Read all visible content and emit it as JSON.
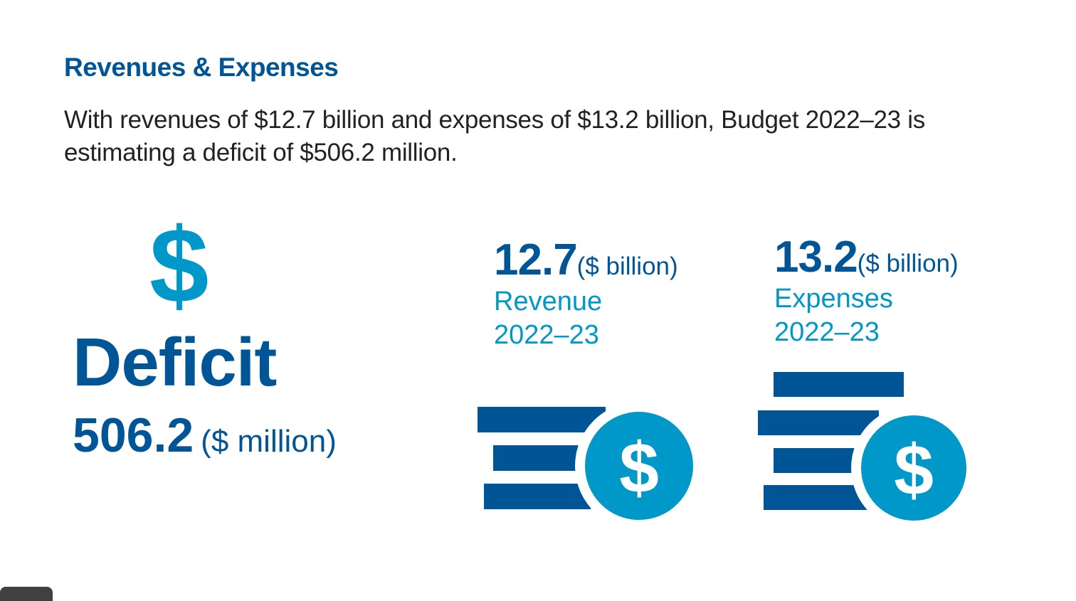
{
  "heading": "Revenues & Expenses",
  "intro": "With revenues of $12.7 billion and expenses of $13.2 billion, Budget 2022–23 is estimating a deficit of $506.2 million.",
  "deficit": {
    "symbol": "$",
    "label": "Deficit",
    "value": "506.2",
    "unit": "($ million)"
  },
  "revenue": {
    "value": "12.7",
    "unit": "($ billion)",
    "label": "Revenue",
    "year": "2022–23"
  },
  "expenses": {
    "value": "13.2",
    "unit": "($ billion)",
    "label": "Expenses",
    "year": "2022–23"
  },
  "coin_symbol": "$",
  "colors": {
    "dark_blue": "#005596",
    "light_blue": "#0098c8",
    "text": "#222222"
  },
  "icons": [
    "dollar-sign-icon",
    "coin-stack-icon"
  ]
}
